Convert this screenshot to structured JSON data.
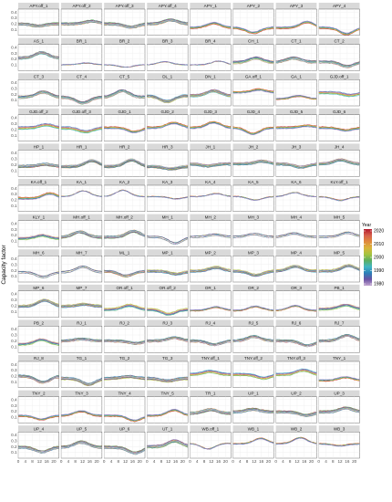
{
  "chart_data": {
    "type": "line",
    "ylabel": "Capacity factor",
    "xlabel": "",
    "x_ticks": [
      0,
      4,
      8,
      12,
      16,
      20
    ],
    "x_tick_labels": [
      "0",
      "4",
      "8",
      "12",
      "16",
      "20"
    ],
    "y_ticks": [
      0.1,
      0.2,
      0.3,
      0.4
    ],
    "y_tick_labels": [
      "0.1",
      "0.2",
      "0.3",
      "0.4"
    ],
    "xlim": [
      0,
      23
    ],
    "ylim": [
      0,
      0.45
    ],
    "grid": true,
    "legend": {
      "title": "Year",
      "placement": "right",
      "ticks": [
        2020,
        2010,
        2000,
        1990,
        1980
      ],
      "colors": [
        "#b2182b",
        "#d6604d",
        "#e08a3c",
        "#d9b43a",
        "#a6c440",
        "#5aae61",
        "#41b6c4",
        "#2c7fb8",
        "#6a51a3",
        "#c2a5cf"
      ]
    },
    "ncols": 8,
    "panels": [
      "APY.off_1",
      "APY.off_2",
      "APY.off_3",
      "APY.off_4",
      "APY_1",
      "APY_2",
      "APY_3",
      "APY_4",
      "AS_1",
      "BR_1",
      "BR_2",
      "BR_3",
      "BR_4",
      "CH_1",
      "CT_1",
      "CT_2",
      "CT_3",
      "CT_4",
      "CT_5",
      "DL_1",
      "DN_1",
      "GA.off_1",
      "GA_1",
      "GJD.off_1",
      "GJD.off_2",
      "GJD.off_3",
      "GJD_1",
      "GJD_2",
      "GJD_3",
      "GJD_4",
      "GJD_5",
      "GJD_6",
      "HP_1",
      "HR_1",
      "HR_2",
      "HR_3",
      "JH_1",
      "JH_2",
      "JH_3",
      "JH_4",
      "KA.off_1",
      "KA_1",
      "KA_2",
      "KA_3",
      "KA_4",
      "KA_5",
      "KA_6",
      "KLY.off_1",
      "KLY_1",
      "MH.off_1",
      "MH.off_2",
      "MH_1",
      "MH_2",
      "MH_3",
      "MH_4",
      "MH_5",
      "MH_6",
      "MH_7",
      "ML_1",
      "MP_1",
      "MP_2",
      "MP_3",
      "MP_4",
      "MP_5",
      "MP_6",
      "MP_7",
      "OR.off_1",
      "OR.off_2",
      "OR_1",
      "OR_2",
      "OR_3",
      "PB_1",
      "PB_2",
      "RJ_1",
      "RJ_2",
      "RJ_3",
      "RJ_4",
      "RJ_5",
      "RJ_6",
      "RJ_7",
      "RJ_8",
      "TG_1",
      "TG_2",
      "TG_3",
      "TNY.off_1",
      "TNY.off_2",
      "TNY.off_3",
      "TNY_1",
      "TNY_2",
      "TNY_3",
      "TNY_4",
      "TNY_5",
      "TR_1",
      "UP_1",
      "UP_2",
      "UP_3",
      "UP_4",
      "UP_5",
      "UP_6",
      "UT_1",
      "WB.off_1",
      "WB_1",
      "WB_2",
      "WB_3"
    ]
  }
}
